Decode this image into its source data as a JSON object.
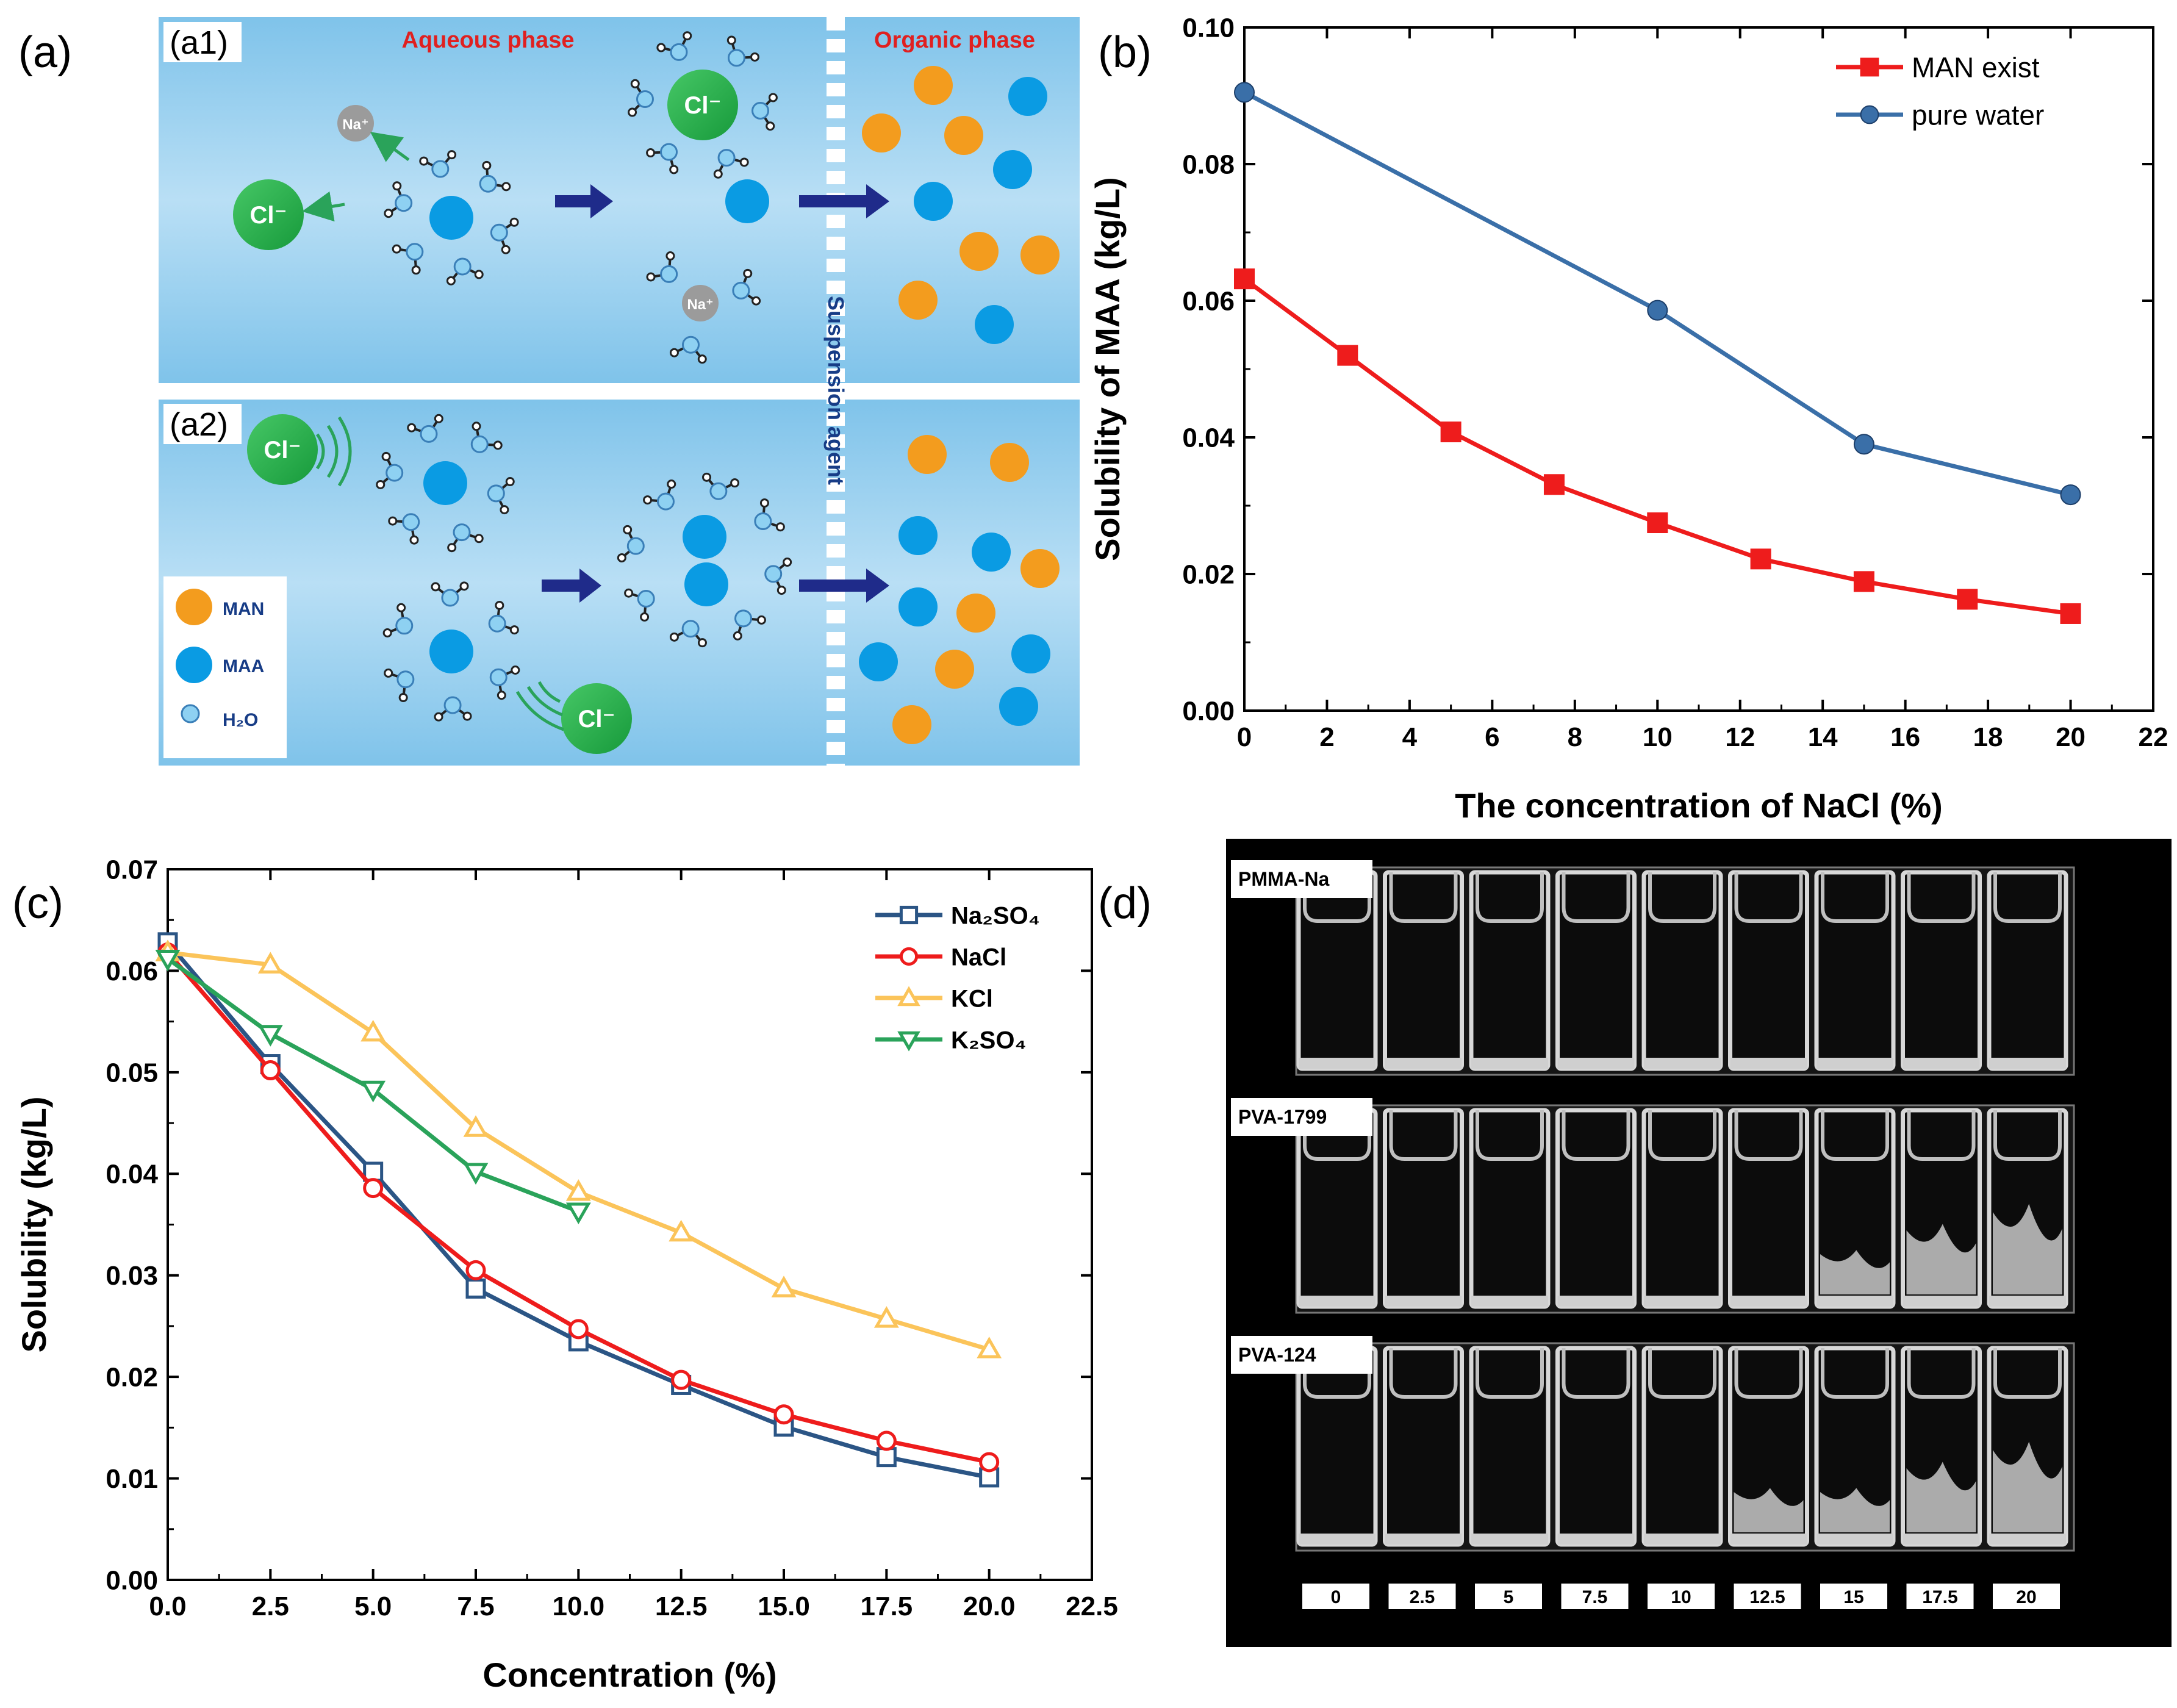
{
  "panels": {
    "a": {
      "label": "(a)",
      "a1_label": "(a1)",
      "a2_label": "(a2)",
      "aqueous_title": "Aqueous phase",
      "organic_title": "Organic phase",
      "divider_text": "Suspension agent",
      "ion_cl": "Cl⁻",
      "ion_na": "Na⁺",
      "legend": [
        {
          "name": "MAN",
          "color": "#f39c1e"
        },
        {
          "name": "MAA",
          "color": "#0a9be3"
        },
        {
          "name": "H₂O",
          "color": "#8ed1f2"
        }
      ]
    },
    "b": {
      "label": "(b)"
    },
    "c": {
      "label": "(c)"
    },
    "d": {
      "label": "(d)",
      "rows": [
        {
          "name": "PMMA-Na",
          "turbid_from": 99
        },
        {
          "name": "PVA-1799",
          "turbid_from": 6
        },
        {
          "name": "PVA-124",
          "turbid_from": 5
        }
      ],
      "concentrations": [
        "0",
        "2.5",
        "5",
        "7.5",
        "10",
        "12.5",
        "15",
        "17.5",
        "20"
      ]
    }
  },
  "chart_data": [
    {
      "id": "b",
      "type": "line",
      "xlabel": "The concentration of NaCl (%)",
      "ylabel": "Solubility of MAA (kg/L)",
      "xlim": [
        0,
        22
      ],
      "ylim": [
        0,
        0.1
      ],
      "xticks": [
        "0",
        "2",
        "4",
        "6",
        "8",
        "10",
        "12",
        "14",
        "16",
        "18",
        "20",
        "22"
      ],
      "yticks": [
        "0.00",
        "0.02",
        "0.04",
        "0.06",
        "0.08",
        "0.10"
      ],
      "legend_position": "top-right",
      "series": [
        {
          "name": "MAN exist",
          "color": "#ee1c1c",
          "marker": "square",
          "x": [
            0,
            2.5,
            5,
            7.5,
            10,
            12.5,
            15,
            17.5,
            20
          ],
          "y": [
            0.0632,
            0.052,
            0.0408,
            0.0331,
            0.0275,
            0.0222,
            0.0189,
            0.0163,
            0.0142
          ]
        },
        {
          "name": "pure water",
          "color": "#3a6fa8",
          "marker": "circle",
          "x": [
            0,
            10,
            15,
            20
          ],
          "y": [
            0.0905,
            0.0586,
            0.039,
            0.0316
          ]
        }
      ]
    },
    {
      "id": "c",
      "type": "line",
      "xlabel": "Concentration (%)",
      "ylabel": "Solubility (kg/L)",
      "xlim": [
        0,
        22.5
      ],
      "ylim": [
        0,
        0.07
      ],
      "xticks": [
        "0.0",
        "2.5",
        "5.0",
        "7.5",
        "10.0",
        "12.5",
        "15.0",
        "17.5",
        "20.0",
        "22.5"
      ],
      "yticks": [
        "0.00",
        "0.01",
        "0.02",
        "0.03",
        "0.04",
        "0.05",
        "0.06",
        "0.07"
      ],
      "legend_position": "top-right",
      "series": [
        {
          "name": "Na₂SO₄",
          "color": "#2b5585",
          "marker": "square-open",
          "x": [
            0,
            2.5,
            5,
            7.5,
            10,
            12.5,
            15,
            17.5,
            20
          ],
          "y": [
            0.0628,
            0.0508,
            0.0402,
            0.0287,
            0.0235,
            0.0192,
            0.0151,
            0.0121,
            0.0101
          ]
        },
        {
          "name": "NaCl",
          "color": "#ee1c1c",
          "marker": "circle-open",
          "x": [
            0,
            2.5,
            5,
            7.5,
            10,
            12.5,
            15,
            17.5,
            20
          ],
          "y": [
            0.0618,
            0.0502,
            0.0386,
            0.0305,
            0.0247,
            0.0197,
            0.0163,
            0.0137,
            0.0116
          ]
        },
        {
          "name": "KCl",
          "color": "#fbc45a",
          "marker": "triangle-up-open",
          "x": [
            0,
            2.5,
            5,
            7.5,
            10,
            12.5,
            15,
            17.5,
            20
          ],
          "y": [
            0.0618,
            0.0606,
            0.0539,
            0.0445,
            0.0382,
            0.0342,
            0.0287,
            0.0257,
            0.0227
          ]
        },
        {
          "name": "K₂SO₄",
          "color": "#2aa35a",
          "marker": "triangle-down-open",
          "x": [
            0,
            2.5,
            5,
            7.5,
            10
          ],
          "y": [
            0.0612,
            0.0538,
            0.0483,
            0.0402,
            0.0363
          ]
        }
      ]
    }
  ]
}
